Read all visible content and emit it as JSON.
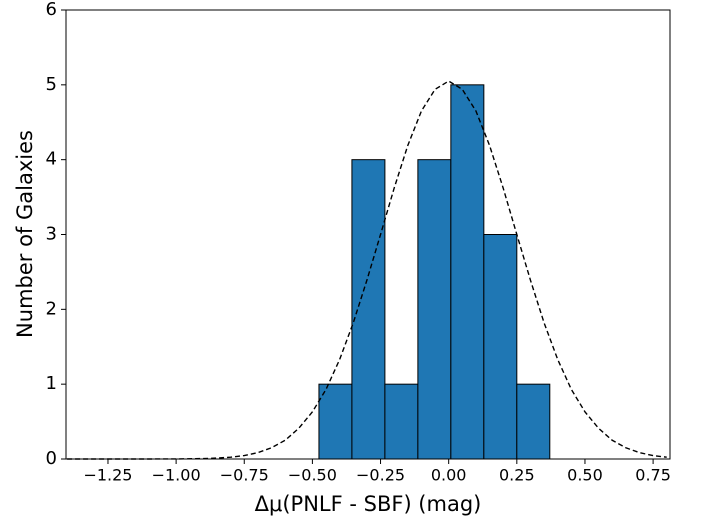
{
  "chart_data": {
    "type": "histogram",
    "x_label": "Δμ(PNLF - SBF) (mag)",
    "y_label": "Number of Galaxies",
    "bins": [
      -0.476,
      -0.355,
      -0.234,
      -0.113,
      0.008,
      0.129,
      0.25,
      0.371
    ],
    "values": [
      1,
      4,
      1,
      4,
      5,
      3,
      1
    ],
    "color": "#1f77b4",
    "edgecolor": "#000000",
    "curve": {
      "x": [
        -1.4,
        -1.3,
        -1.2,
        -1.1,
        -1.0,
        -0.9,
        -0.85,
        -0.8,
        -0.75,
        -0.7,
        -0.65,
        -0.6,
        -0.55,
        -0.5,
        -0.45,
        -0.4,
        -0.35,
        -0.3,
        -0.25,
        -0.2,
        -0.15,
        -0.1,
        -0.05,
        0,
        0.05,
        0.1,
        0.15,
        0.2,
        0.25,
        0.3,
        0.35,
        0.4,
        0.45,
        0.5,
        0.55,
        0.6,
        0.65,
        0.7,
        0.75,
        0.8
      ],
      "y": [
        0,
        0,
        0,
        0,
        0.001,
        0.006,
        0.012,
        0.024,
        0.046,
        0.085,
        0.15,
        0.25,
        0.41,
        0.63,
        0.93,
        1.33,
        1.82,
        2.39,
        3.0,
        3.62,
        4.19,
        4.65,
        4.94,
        5.05,
        4.94,
        4.65,
        4.19,
        3.62,
        3.0,
        2.39,
        1.82,
        1.33,
        0.93,
        0.63,
        0.41,
        0.25,
        0.15,
        0.085,
        0.046,
        0.024
      ],
      "color": "#000000",
      "dashed": true
    },
    "xlim": [
      -1.404,
      0.812
    ],
    "ylim": [
      0,
      6
    ],
    "xticks": [
      {
        "value": -1.25,
        "label": "−1.25"
      },
      {
        "value": -1.0,
        "label": "−1.00"
      },
      {
        "value": -0.75,
        "label": "−0.75"
      },
      {
        "value": -0.5,
        "label": "−0.50"
      },
      {
        "value": -0.25,
        "label": "−0.25"
      },
      {
        "value": 0,
        "label": "0.00"
      },
      0.25,
      {
        "value": 0.5,
        "label": "0.50"
      },
      0.75
    ],
    "yticks": [
      0,
      1,
      2,
      3,
      4,
      5,
      6
    ]
  }
}
